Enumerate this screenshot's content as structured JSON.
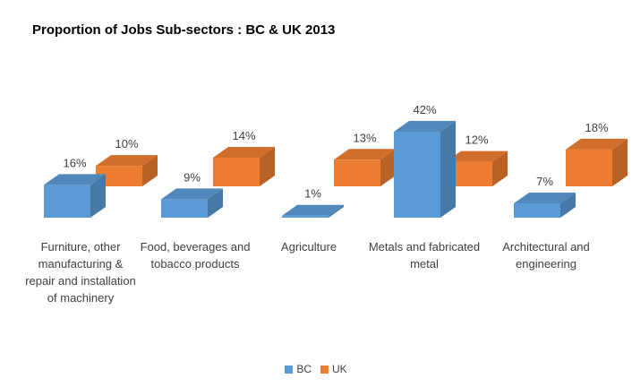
{
  "chart_data": {
    "type": "bar",
    "title": "Proportion of Jobs Sub-sectors : BC & UK 2013",
    "xlabel": "",
    "ylabel": "",
    "categories": [
      "Furniture, other manufacturing & repair and installation of machinery",
      "Food, beverages and tobacco products",
      "Agriculture",
      "Metals and fabricated metal",
      "Architectural and engineering"
    ],
    "series": [
      {
        "name": "BC",
        "values": [
          16,
          9,
          1,
          42,
          7
        ],
        "value_labels": [
          "16%",
          "9%",
          "1%",
          "42%",
          "7%"
        ],
        "color": "#5B9BD5"
      },
      {
        "name": "UK",
        "values": [
          10,
          14,
          13,
          12,
          18
        ],
        "value_labels": [
          "10%",
          "14%",
          "13%",
          "12%",
          "18%"
        ],
        "color": "#ED7D31"
      }
    ],
    "ylim": [
      0,
      42
    ],
    "grid": false,
    "three_d": true,
    "legend_position": "bottom"
  }
}
